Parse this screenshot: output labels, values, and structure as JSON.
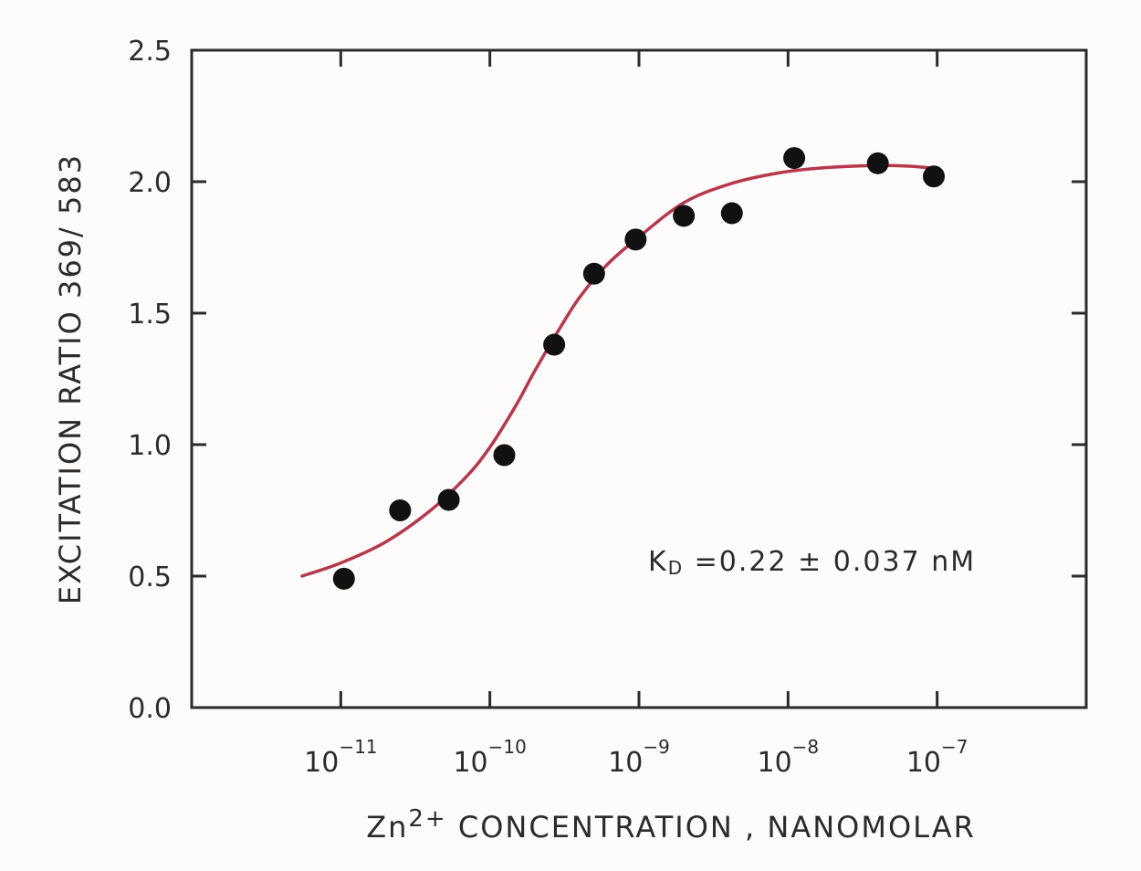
{
  "chart_data": {
    "type": "scatter",
    "x_scale": "log",
    "xlim": [
      1e-12,
      1e-06
    ],
    "ylim": [
      0.0,
      2.5
    ],
    "grid": false,
    "y_ticks": [
      "0.0",
      "0.5",
      "1.0",
      "1.5",
      "2.0",
      "2.5"
    ],
    "y_tick_values": [
      0.0,
      0.5,
      1.0,
      1.5,
      2.0,
      2.5
    ],
    "x_ticks": [
      {
        "base": "10",
        "exp": "−11",
        "value": 1e-11
      },
      {
        "base": "10",
        "exp": "−10",
        "value": 1e-10
      },
      {
        "base": "10",
        "exp": "−9",
        "value": 1e-09
      },
      {
        "base": "10",
        "exp": "−8",
        "value": 1e-08
      },
      {
        "base": "10",
        "exp": "−7",
        "value": 1e-07
      }
    ],
    "ylabel": "EXCITATION  RATIO  369/ 583",
    "xlabel": {
      "pre": "Zn",
      "sup": "2+",
      "post": " CONCENTRATION , NANOMOLAR"
    },
    "annotation": {
      "k": "K",
      "sub": "D",
      "text": " =0.22 ± 0.037 nM"
    },
    "series": [
      {
        "points": [
          {
            "x": 1.05e-11,
            "y": 0.49
          },
          {
            "x": 2.5e-11,
            "y": 0.75
          },
          {
            "x": 5.3e-11,
            "y": 0.79
          },
          {
            "x": 1.25e-10,
            "y": 0.96
          },
          {
            "x": 2.7e-10,
            "y": 1.38
          },
          {
            "x": 5e-10,
            "y": 1.65
          },
          {
            "x": 9.5e-10,
            "y": 1.78
          },
          {
            "x": 2e-09,
            "y": 1.87
          },
          {
            "x": 4.2e-09,
            "y": 1.88
          },
          {
            "x": 1.1e-08,
            "y": 2.09
          },
          {
            "x": 4e-08,
            "y": 2.07
          },
          {
            "x": 9.5e-08,
            "y": 2.02
          }
        ]
      }
    ],
    "fit_curve": {
      "x": [
        5.5e-12,
        1e-11,
        2e-11,
        4e-11,
        7e-11,
        1e-10,
        1.5e-10,
        2e-10,
        3e-10,
        4e-10,
        6e-10,
        1e-09,
        2e-09,
        4e-09,
        8e-09,
        1.5e-08,
        3e-08,
        6e-08,
        1e-07
      ],
      "y": [
        0.5,
        0.55,
        0.63,
        0.75,
        0.88,
        0.99,
        1.15,
        1.28,
        1.45,
        1.56,
        1.68,
        1.79,
        1.92,
        1.99,
        2.03,
        2.05,
        2.06,
        2.06,
        2.05
      ]
    },
    "colors": {
      "points": "#111111",
      "curve": "#b5384d",
      "axes": "#2b2b2b"
    }
  }
}
